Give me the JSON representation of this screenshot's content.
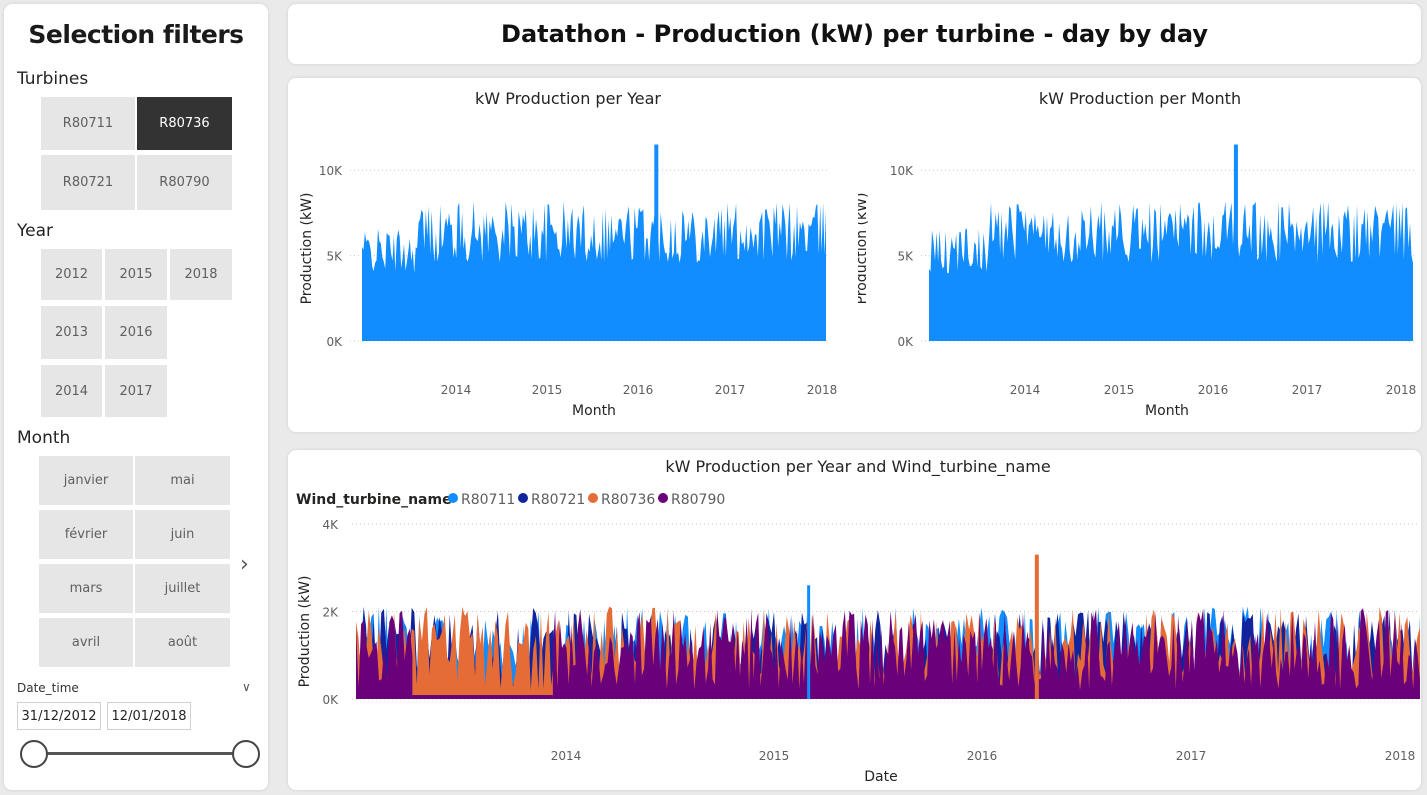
{
  "filters": {
    "title": "Selection filters",
    "turbines": {
      "label": "Turbines",
      "items": [
        {
          "label": "R80711",
          "selected": false
        },
        {
          "label": "R80736",
          "selected": true
        },
        {
          "label": "R80721",
          "selected": false
        },
        {
          "label": "R80790",
          "selected": false
        }
      ]
    },
    "year": {
      "label": "Year",
      "items": [
        "2012",
        "2015",
        "2018",
        "2013",
        "2016",
        "2014",
        "2017"
      ]
    },
    "month": {
      "label": "Month",
      "items": [
        "janvier",
        "mai",
        "février",
        "juin",
        "mars",
        "juillet",
        "avril",
        "août"
      ]
    },
    "date_time": {
      "label": "Date_time",
      "start": "31/12/2012",
      "end": "12/01/2018"
    }
  },
  "header": {
    "title": "Datathon - Production (kW) per turbine - day by day"
  },
  "colors": {
    "R80711": "#118DFF",
    "R80721": "#12239E",
    "R80736": "#E66C37",
    "R80790": "#6B007B",
    "selected_tile": "#333333",
    "tile": "#e6e6e6"
  },
  "chart_data": [
    {
      "type": "area",
      "title": "kW Production per Year",
      "xlabel": "Month",
      "ylabel": "Production (kW)",
      "x_ticks": [
        "2014",
        "2015",
        "2016",
        "2017",
        "2018"
      ],
      "y_ticks": [
        "0K",
        "5K",
        "10K"
      ],
      "ylim": [
        0,
        12000
      ],
      "grid": true,
      "series": [
        {
          "color": "#118DFF",
          "peak": 11500,
          "typical_range": [
            0,
            8200
          ]
        }
      ]
    },
    {
      "type": "area",
      "title": "kW Production per Month",
      "xlabel": "Month",
      "ylabel": "Production (kW)",
      "x_ticks": [
        "2014",
        "2015",
        "2016",
        "2017",
        "2018"
      ],
      "y_ticks": [
        "0K",
        "5K",
        "10K"
      ],
      "ylim": [
        0,
        12000
      ],
      "grid": true,
      "series": [
        {
          "color": "#118DFF",
          "peak": 11500,
          "typical_range": [
            0,
            8200
          ]
        }
      ]
    },
    {
      "type": "area",
      "title": "kW Production per Year and Wind_turbine_name",
      "legend_title": "Wind_turbine_name",
      "legend_position": "top-left",
      "xlabel": "Date",
      "ylabel": "Production (kW)",
      "x_ticks": [
        "2014",
        "2015",
        "2016",
        "2017",
        "2018"
      ],
      "y_ticks": [
        "0K",
        "2K",
        "4K"
      ],
      "ylim": [
        0,
        4000
      ],
      "grid": true,
      "series": [
        {
          "name": "R80711",
          "color": "#118DFF",
          "peak": 2600
        },
        {
          "name": "R80721",
          "color": "#12239E",
          "peak": 2100
        },
        {
          "name": "R80736",
          "color": "#E66C37",
          "peak": 3300
        },
        {
          "name": "R80790",
          "color": "#6B007B",
          "peak": 2050
        }
      ]
    }
  ]
}
